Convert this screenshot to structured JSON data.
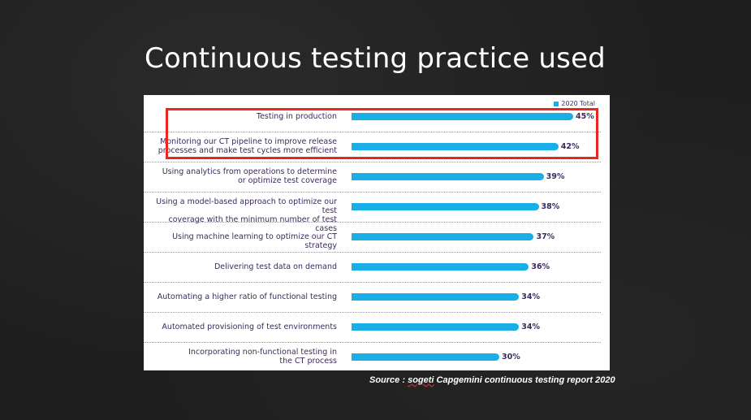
{
  "slide": {
    "title": "Continuous testing practice used",
    "source_prefix": "Source : ",
    "source_brand": "sogeti",
    "source_rest": " Capgemini continuous testing report 2020"
  },
  "colors": {
    "bar": "#1aaee6",
    "highlight": "#e8281e",
    "text": "#3c2a5c"
  },
  "chart_data": {
    "type": "bar",
    "orientation": "horizontal",
    "legend": "2020 Total",
    "legend_position": "top-right",
    "categories": [
      "Testing in production",
      "Monitoring our CT pipeline to improve release processes and make test cycles more efficient",
      "Using analytics from operations to determine or optimize test coverage",
      "Using a model-based approach to optimize our test coverage with the minimum number of test cases",
      "Using machine learning to optimize our CT strategy",
      "Delivering test data on demand",
      "Automating a higher ratio of functional testing",
      "Automated provisioning of test environments",
      "Incorporating non-functional testing in the CT process"
    ],
    "label_lines": [
      [
        "Testing in production"
      ],
      [
        "Monitoring our CT pipeline to improve release",
        "processes and make test cycles more efficient"
      ],
      [
        "Using analytics from operations to determine",
        "or optimize test coverage"
      ],
      [
        "Using a model-based approach to optimize our test",
        "coverage with the minimum number of test cases"
      ],
      [
        "Using machine learning to optimize our CT strategy"
      ],
      [
        "Delivering test data on demand"
      ],
      [
        "Automating a higher ratio of functional testing"
      ],
      [
        "Automated provisioning of test environments"
      ],
      [
        "Incorporating non-functional testing in",
        "the CT process"
      ]
    ],
    "values": [
      45,
      42,
      39,
      38,
      37,
      36,
      34,
      34,
      30
    ],
    "value_labels": [
      "45%",
      "42%",
      "39%",
      "38%",
      "37%",
      "36%",
      "34%",
      "34%",
      "30%"
    ],
    "highlighted": [
      0,
      1
    ],
    "xlim": [
      0,
      45
    ]
  }
}
